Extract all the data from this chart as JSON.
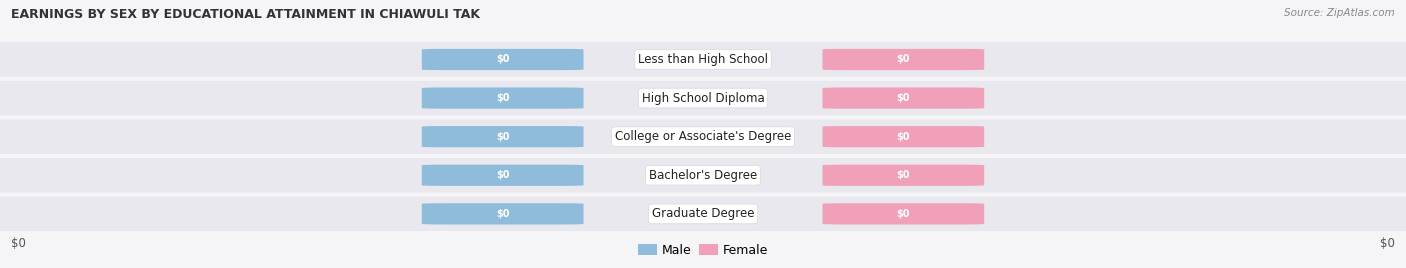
{
  "title": "EARNINGS BY SEX BY EDUCATIONAL ATTAINMENT IN CHIAWULI TAK",
  "source": "Source: ZipAtlas.com",
  "categories": [
    "Less than High School",
    "High School Diploma",
    "College or Associate's Degree",
    "Bachelor's Degree",
    "Graduate Degree"
  ],
  "male_values": [
    0,
    0,
    0,
    0,
    0
  ],
  "female_values": [
    0,
    0,
    0,
    0,
    0
  ],
  "male_color": "#8fbcdb",
  "female_color": "#f0a0b8",
  "row_bg_even": "#ededf2",
  "row_bg_odd": "#e4e4ea",
  "bar_label_color": "#ffffff",
  "xlabel_left": "$0",
  "xlabel_right": "$0",
  "legend_male": "Male",
  "legend_female": "Female",
  "figsize": [
    14.06,
    2.68
  ],
  "dpi": 100,
  "bg_color": "#f5f5f8"
}
